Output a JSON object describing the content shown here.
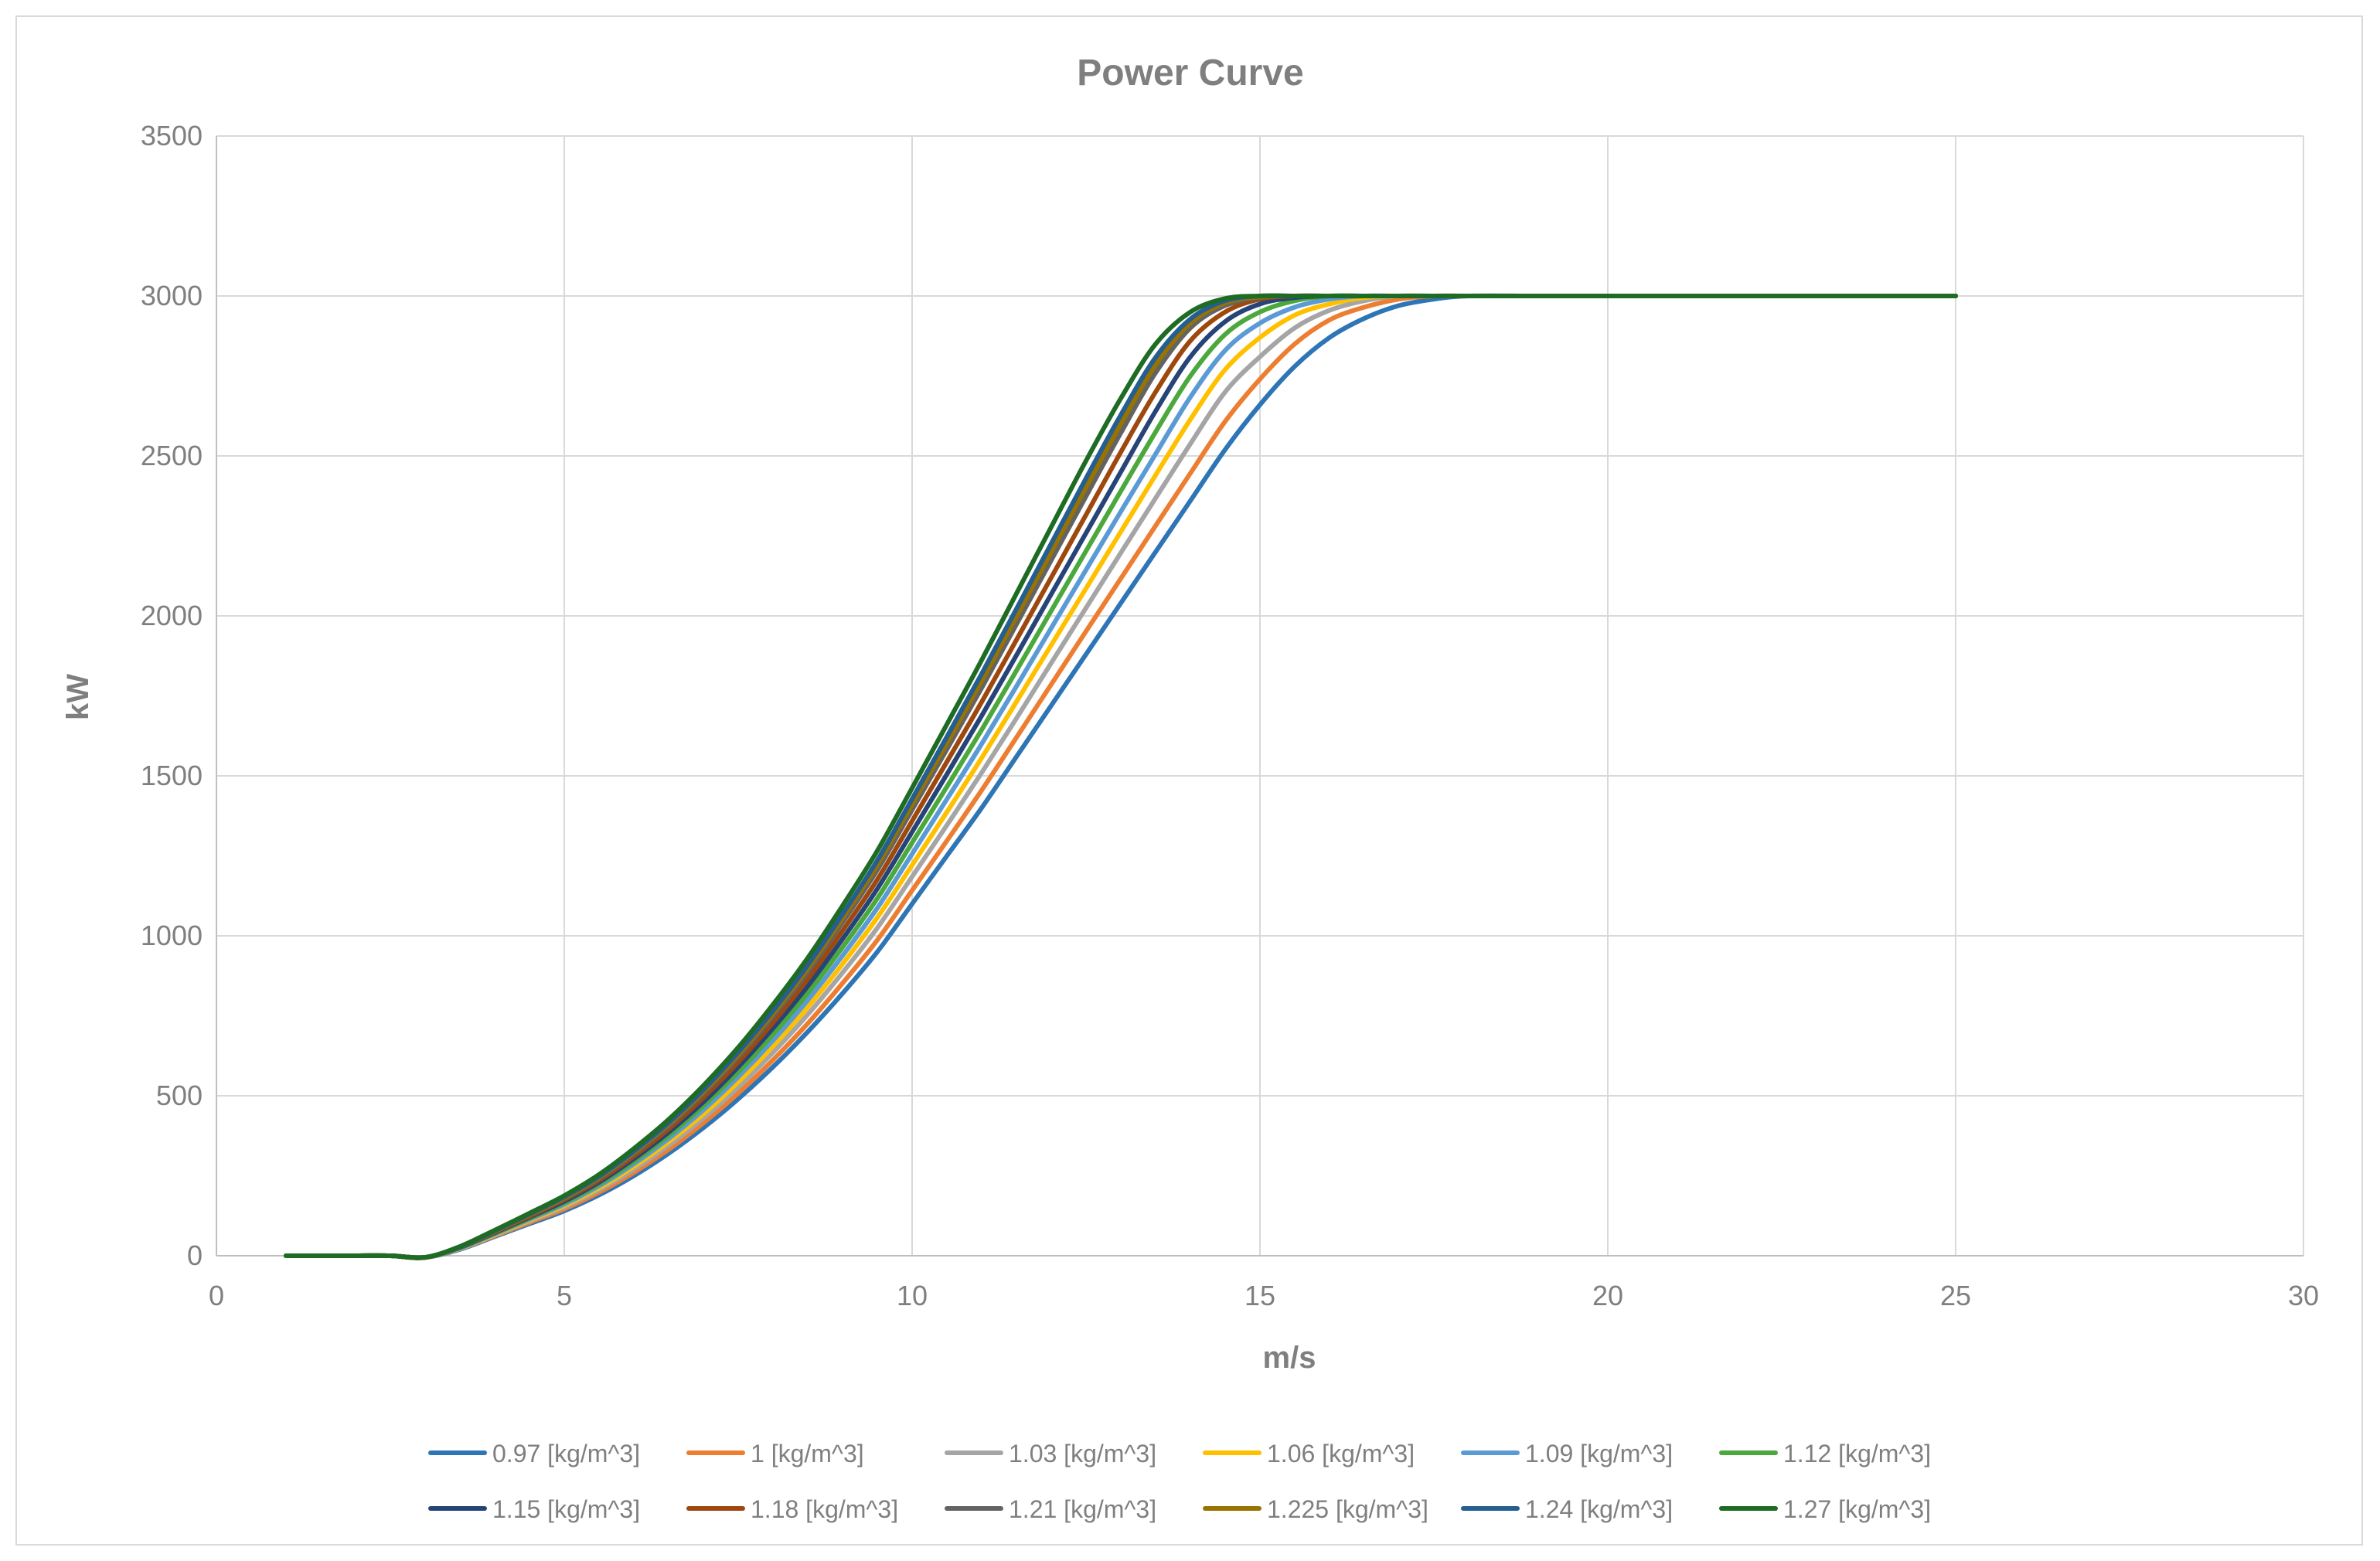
{
  "chart_data": {
    "type": "line",
    "title": "Power Curve",
    "xlabel": "m/s",
    "ylabel": "kW",
    "xlim": [
      0,
      30
    ],
    "ylim": [
      0,
      3500
    ],
    "xticks": [
      0,
      5,
      10,
      15,
      20,
      25,
      30
    ],
    "yticks": [
      0,
      500,
      1000,
      1500,
      2000,
      2500,
      3000,
      3500
    ],
    "grid": true,
    "legend_position": "bottom",
    "x": [
      1,
      2,
      2.5,
      3,
      3.5,
      4,
      4.5,
      5,
      5.5,
      6,
      6.5,
      7,
      7.5,
      8,
      8.5,
      9,
      9.5,
      10,
      10.5,
      11,
      11.5,
      12,
      12.5,
      13,
      13.5,
      14,
      14.5,
      15,
      15.5,
      16,
      16.5,
      17,
      17.5,
      18,
      19,
      20,
      21,
      22,
      23,
      24,
      25
    ],
    "series": [
      {
        "name": "0.97 [kg/m^3]",
        "color": "#2e75b6",
        "values": [
          0,
          0,
          0,
          -5,
          20,
          60,
          100,
          140,
          190,
          250,
          320,
          400,
          490,
          590,
          700,
          820,
          950,
          1100,
          1250,
          1400,
          1560,
          1720,
          1880,
          2040,
          2200,
          2360,
          2520,
          2660,
          2780,
          2870,
          2930,
          2970,
          2990,
          3000,
          3000,
          3000,
          3000,
          3000,
          3000,
          3000,
          3000
        ]
      },
      {
        "name": "1 [kg/m^3]",
        "color": "#ed7d31",
        "values": [
          0,
          0,
          0,
          -5,
          22,
          62,
          104,
          146,
          198,
          260,
          332,
          415,
          508,
          612,
          726,
          852,
          987,
          1142,
          1297,
          1455,
          1620,
          1786,
          1952,
          2117,
          2282,
          2446,
          2608,
          2740,
          2850,
          2925,
          2965,
          2990,
          3000,
          3000,
          3000,
          3000,
          3000,
          3000,
          3000,
          3000,
          3000
        ]
      },
      {
        "name": "1.03 [kg/m^3]",
        "color": "#a5a5a5",
        "values": [
          0,
          0,
          0,
          -5,
          22,
          64,
          108,
          152,
          206,
          270,
          345,
          430,
          527,
          635,
          754,
          885,
          1025,
          1185,
          1346,
          1510,
          1680,
          1853,
          2025,
          2197,
          2368,
          2538,
          2700,
          2810,
          2900,
          2955,
          2985,
          3000,
          3000,
          3000,
          3000,
          3000,
          3000,
          3000,
          3000,
          3000,
          3000
        ]
      },
      {
        "name": "1.06 [kg/m^3]",
        "color": "#ffc000",
        "values": [
          0,
          0,
          0,
          -5,
          23,
          66,
          111,
          157,
          212,
          279,
          356,
          443,
          543,
          655,
          777,
          912,
          1057,
          1221,
          1387,
          1556,
          1732,
          1909,
          2086,
          2263,
          2440,
          2614,
          2770,
          2870,
          2940,
          2975,
          2995,
          3000,
          3000,
          3000,
          3000,
          3000,
          3000,
          3000,
          3000,
          3000,
          3000
        ]
      },
      {
        "name": "1.09 [kg/m^3]",
        "color": "#5b9bd5",
        "values": [
          0,
          0,
          0,
          -5,
          24,
          68,
          114,
          161,
          218,
          287,
          366,
          456,
          559,
          673,
          799,
          938,
          1087,
          1256,
          1427,
          1600,
          1780,
          1962,
          2144,
          2326,
          2506,
          2684,
          2830,
          2915,
          2965,
          2990,
          3000,
          3000,
          3000,
          3000,
          3000,
          3000,
          3000,
          3000,
          3000,
          3000,
          3000
        ]
      },
      {
        "name": "1.12 [kg/m^3]",
        "color": "#4aa83c",
        "values": [
          0,
          0,
          0,
          -5,
          25,
          70,
          117,
          166,
          224,
          295,
          376,
          469,
          574,
          692,
          821,
          964,
          1117,
          1291,
          1466,
          1644,
          1829,
          2016,
          2203,
          2390,
          2575,
          2750,
          2880,
          2950,
          2985,
          3000,
          3000,
          3000,
          3000,
          3000,
          3000,
          3000,
          3000,
          3000,
          3000,
          3000,
          3000
        ]
      },
      {
        "name": "1.15 [kg/m^3]",
        "color": "#264478",
        "values": [
          0,
          0,
          0,
          -5,
          26,
          72,
          120,
          170,
          230,
          303,
          386,
          481,
          590,
          711,
          843,
          990,
          1147,
          1325,
          1505,
          1688,
          1877,
          2068,
          2259,
          2450,
          2640,
          2810,
          2920,
          2975,
          2995,
          3000,
          3000,
          3000,
          3000,
          3000,
          3000,
          3000,
          3000,
          3000,
          3000,
          3000,
          3000
        ]
      },
      {
        "name": "1.18 [kg/m^3]",
        "color": "#9e480e",
        "values": [
          0,
          0,
          0,
          -5,
          27,
          74,
          123,
          175,
          236,
          311,
          396,
          494,
          605,
          729,
          865,
          1016,
          1176,
          1359,
          1544,
          1731,
          1925,
          2120,
          2316,
          2512,
          2700,
          2860,
          2950,
          2990,
          3000,
          3000,
          3000,
          3000,
          3000,
          3000,
          3000,
          3000,
          3000,
          3000,
          3000,
          3000,
          3000
        ]
      },
      {
        "name": "1.21 [kg/m^3]",
        "color": "#636363",
        "values": [
          0,
          0,
          0,
          -5,
          27,
          76,
          127,
          179,
          242,
          319,
          406,
          507,
          621,
          748,
          887,
          1042,
          1206,
          1394,
          1583,
          1775,
          1974,
          2174,
          2374,
          2572,
          2760,
          2900,
          2970,
          2995,
          3000,
          3000,
          3000,
          3000,
          3000,
          3000,
          3000,
          3000,
          3000,
          3000,
          3000,
          3000,
          3000
        ]
      },
      {
        "name": "1.225 [kg/m^3]",
        "color": "#997300",
        "values": [
          0,
          0,
          0,
          -5,
          28,
          77,
          128,
          181,
          245,
          323,
          411,
          513,
          628,
          757,
          898,
          1055,
          1221,
          1411,
          1602,
          1797,
          1998,
          2200,
          2402,
          2600,
          2785,
          2915,
          2978,
          2997,
          3000,
          3000,
          3000,
          3000,
          3000,
          3000,
          3000,
          3000,
          3000,
          3000,
          3000,
          3000,
          3000
        ]
      },
      {
        "name": "1.24 [kg/m^3]",
        "color": "#255e91",
        "values": [
          0,
          0,
          0,
          -5,
          28,
          78,
          130,
          184,
          248,
          327,
          416,
          519,
          636,
          766,
          909,
          1068,
          1236,
          1428,
          1622,
          1819,
          2022,
          2226,
          2430,
          2628,
          2808,
          2928,
          2985,
          3000,
          3000,
          3000,
          3000,
          3000,
          3000,
          3000,
          3000,
          3000,
          3000,
          3000,
          3000,
          3000,
          3000
        ]
      },
      {
        "name": "1.27 [kg/m^3]",
        "color": "#1e6b23",
        "values": [
          0,
          0,
          0,
          -5,
          29,
          80,
          133,
          188,
          254,
          335,
          426,
          532,
          651,
          785,
          931,
          1094,
          1266,
          1462,
          1661,
          1862,
          2070,
          2278,
          2485,
          2680,
          2850,
          2950,
          2992,
          3000,
          3000,
          3000,
          3000,
          3000,
          3000,
          3000,
          3000,
          3000,
          3000,
          3000,
          3000,
          3000,
          3000
        ]
      }
    ]
  }
}
